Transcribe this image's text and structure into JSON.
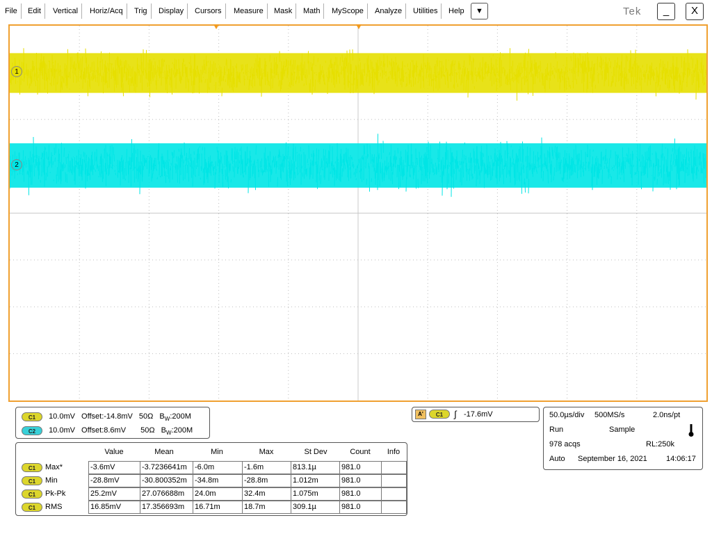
{
  "menu": {
    "items": [
      "File",
      "Edit",
      "Vertical",
      "Horiz/Acq",
      "Trig",
      "Display",
      "Cursors",
      "Measure",
      "Mask",
      "Math",
      "MyScope",
      "Analyze",
      "Utilities",
      "Help"
    ],
    "dropdown_glyph": "▼",
    "brand": "Tek",
    "minimize_glyph": "_",
    "close_glyph": "X"
  },
  "colors": {
    "ch1": "#e6df00",
    "ch2": "#00e5e5",
    "frame": "#f0a030",
    "trigger": "#f29a1e"
  },
  "waveform_markers": {
    "ch1": "1",
    "ch2": "2"
  },
  "channels": [
    {
      "pill": "C1",
      "scale": "10.0mV",
      "offset": "Offset:-14.8mV",
      "impedance": "50Ω",
      "bw_prefix": "B",
      "bw_sub": "W",
      "bw_value": ":200M"
    },
    {
      "pill": "C2",
      "scale": "10.0mV",
      "offset": "Offset:8.6mV",
      "impedance": "50Ω",
      "bw_prefix": "B",
      "bw_sub": "W",
      "bw_value": ":200M"
    }
  ],
  "trigger": {
    "source_pill": "C1",
    "mode_badge": "A'",
    "slope_glyph": "∫",
    "level": "-17.6mV"
  },
  "horizontal": {
    "time_div": "50.0µs/div",
    "sample_rate": "500MS/s",
    "resolution": "2.0ns/pt",
    "state": "Run",
    "acq_mode": "Sample",
    "acqs": "978 acqs",
    "record_length": "RL:250k",
    "trigger_mode": "Auto",
    "date": "September 16, 2021",
    "time": "14:06:17",
    "thermometer_icon": "thermometer-icon"
  },
  "measurements": {
    "headers": [
      "Value",
      "Mean",
      "Min",
      "Max",
      "St Dev",
      "Count",
      "Info"
    ],
    "rows": [
      {
        "pill": "C1",
        "label": "Max*",
        "value": "-3.6mV",
        "mean": "-3.7236641m",
        "min": "-6.0m",
        "max": "-1.6m",
        "stdev": "813.1µ",
        "count": "981.0",
        "info": ""
      },
      {
        "pill": "C1",
        "label": "Min",
        "value": "-28.8mV",
        "mean": "-30.800352m",
        "min": "-34.8m",
        "max": "-28.8m",
        "stdev": "1.012m",
        "count": "981.0",
        "info": ""
      },
      {
        "pill": "C1",
        "label": "Pk-Pk",
        "value": "25.2mV",
        "mean": "27.076688m",
        "min": "24.0m",
        "max": "32.4m",
        "stdev": "1.075m",
        "count": "981.0",
        "info": ""
      },
      {
        "pill": "C1",
        "label": "RMS",
        "value": "16.85mV",
        "mean": "17.356693m",
        "min": "16.71m",
        "max": "18.7m",
        "stdev": "309.1µ",
        "count": "981.0",
        "info": ""
      }
    ]
  }
}
